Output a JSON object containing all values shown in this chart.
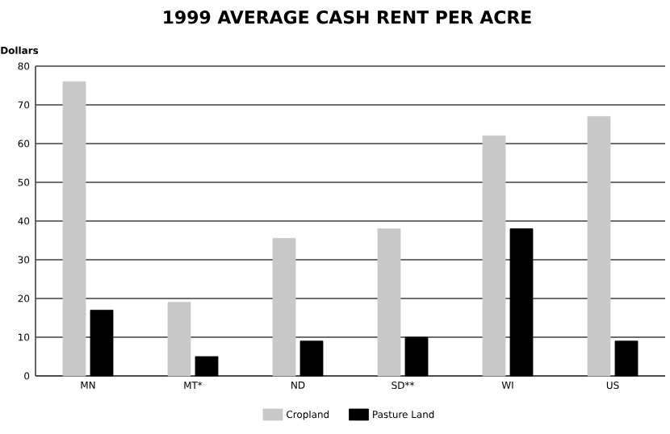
{
  "chart_data": {
    "type": "bar",
    "title": "1999 AVERAGE CASH RENT PER ACRE",
    "ylabel": "Dollars",
    "categories": [
      "MN",
      "MT*",
      "ND",
      "SD**",
      "WI",
      "US"
    ],
    "series": [
      {
        "name": "Cropland",
        "color": "#c8c8c8",
        "values": [
          76,
          19,
          35.5,
          38,
          62,
          67
        ]
      },
      {
        "name": "Pasture Land",
        "color": "#000000",
        "values": [
          17,
          5,
          9,
          10,
          38,
          9
        ]
      }
    ],
    "ylim": [
      0,
      80
    ],
    "yticks": [
      0,
      10,
      20,
      30,
      40,
      50,
      60,
      70,
      80
    ],
    "grid": "y",
    "legend": "bottom"
  }
}
